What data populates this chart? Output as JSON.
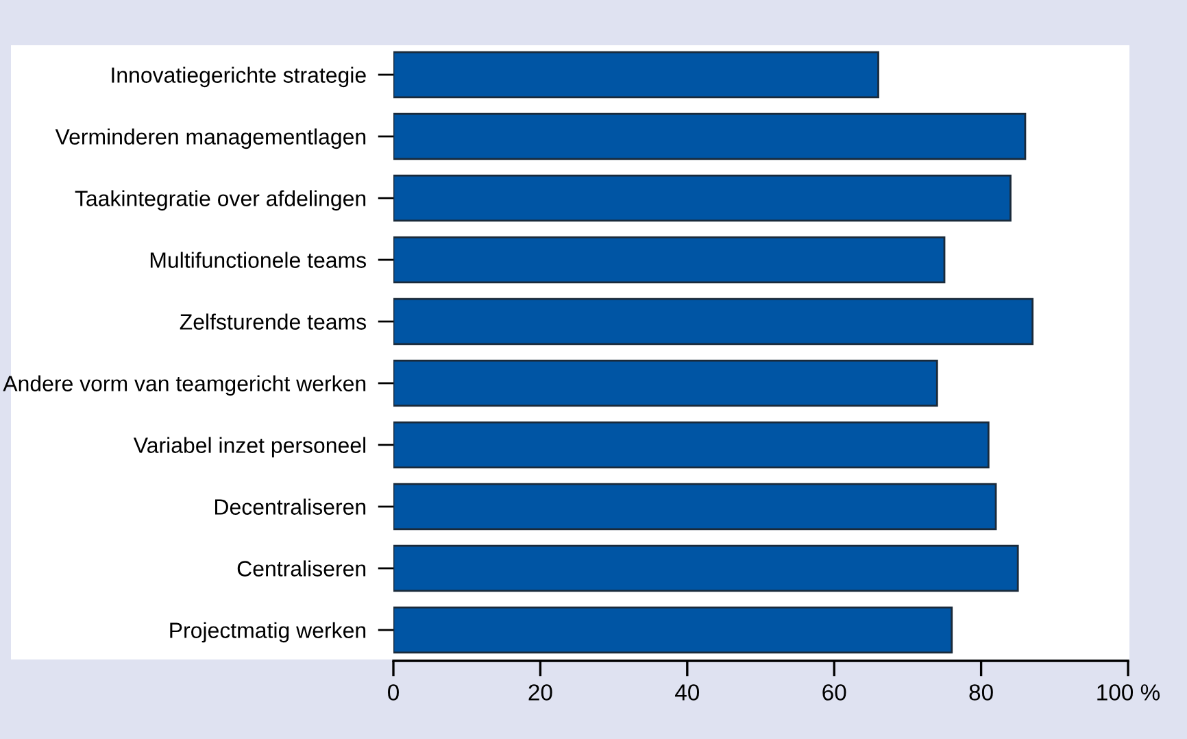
{
  "chart_data": {
    "type": "bar",
    "orientation": "horizontal",
    "categories": [
      "Innovatiegerichte strategie",
      "Verminderen managementlagen",
      "Taakintegratie over afdelingen",
      "Multifunctionele teams",
      "Zelfsturende teams",
      "Andere vorm van teamgericht werken",
      "Variabel inzet personeel",
      "Decentraliseren",
      "Centraliseren",
      "Projectmatig werken"
    ],
    "values": [
      66,
      86,
      84,
      75,
      87,
      74,
      81,
      82,
      85,
      76
    ],
    "color": "#0055a4",
    "xlim": [
      0,
      100
    ],
    "xticks": [
      0,
      20,
      40,
      60,
      80,
      {
        "value": 100,
        "label": "100 %"
      }
    ],
    "grid": false
  }
}
